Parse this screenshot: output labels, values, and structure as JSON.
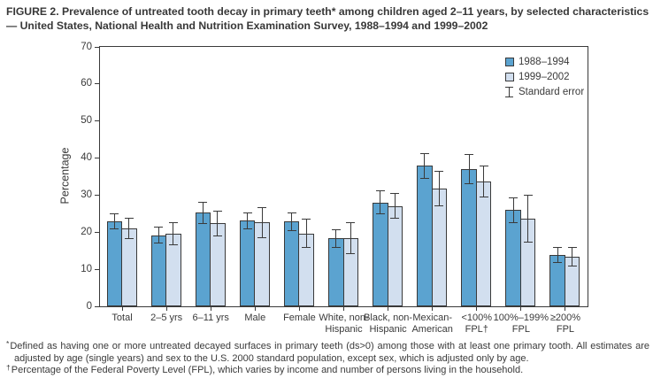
{
  "title": "FIGURE 2. Prevalence of untreated tooth decay in primary teeth* among children aged 2–11 years, by selected characteristics — United States, National Health and Nutrition Examination Survey, 1988–1994 and 1999–2002",
  "chart_data": {
    "type": "bar",
    "ylabel": "Percentage",
    "xlabel": "",
    "ylim": [
      0,
      70
    ],
    "yticks": [
      0,
      10,
      20,
      30,
      40,
      50,
      60,
      70
    ],
    "grid": false,
    "legend_position": "top-right-inside",
    "legend_error_label": "Standard error",
    "error_bars": "standard error",
    "categories": [
      {
        "label": "Total",
        "lines": [
          "Total"
        ]
      },
      {
        "label": "2–5 yrs",
        "lines": [
          "2–5 yrs"
        ]
      },
      {
        "label": "6–11 yrs",
        "lines": [
          "6–11 yrs"
        ]
      },
      {
        "label": "Male",
        "lines": [
          "Male"
        ]
      },
      {
        "label": "Female",
        "lines": [
          "Female"
        ]
      },
      {
        "label": "White, non-Hispanic",
        "lines": [
          "White, non-",
          "Hispanic"
        ]
      },
      {
        "label": "Black, non-Hispanic",
        "lines": [
          "Black, non-",
          "Hispanic"
        ]
      },
      {
        "label": "Mexican-American",
        "lines": [
          "Mexican-",
          "American"
        ]
      },
      {
        "label": "<100% FPL†",
        "lines": [
          "<100%",
          "FPL†"
        ]
      },
      {
        "label": "100%–199% FPL",
        "lines": [
          "100%–199%",
          "FPL"
        ]
      },
      {
        "label": "≥200% FPL",
        "lines": [
          "≥200%",
          "FPL"
        ]
      }
    ],
    "series": [
      {
        "name": "1988–1994",
        "color": "#5ba3d0",
        "values": [
          22.9,
          19.2,
          25.3,
          23.1,
          22.9,
          18.3,
          28.0,
          37.9,
          37.1,
          26.0,
          13.9
        ],
        "std_errors": [
          2.2,
          2.3,
          3.0,
          2.3,
          2.5,
          2.5,
          3.2,
          3.4,
          4.1,
          3.5,
          2.1
        ]
      },
      {
        "name": "1999–2002",
        "color": "#d2dfef",
        "values": [
          21.1,
          19.6,
          22.4,
          22.6,
          19.7,
          18.4,
          27.1,
          31.7,
          33.7,
          23.7,
          13.4
        ],
        "std_errors": [
          2.9,
          3.2,
          3.5,
          4.2,
          3.9,
          4.4,
          3.5,
          4.8,
          4.3,
          6.5,
          2.6
        ]
      }
    ],
    "styling": {
      "axis_color": "#3a3a3a",
      "bar_border_color": "#3a3a3a",
      "background": "#ffffff"
    }
  },
  "footnotes": [
    {
      "marker": "*",
      "text": "Defined as having one or more untreated decayed surfaces in primary teeth (ds>0) among those with at least one primary tooth. All estimates are adjusted by age (single years) and sex to the U.S. 2000 standard population, except sex, which is adjusted only by age."
    },
    {
      "marker": "†",
      "text": "Percentage of the Federal Poverty Level (FPL), which varies by income and number of persons living in the household."
    }
  ]
}
